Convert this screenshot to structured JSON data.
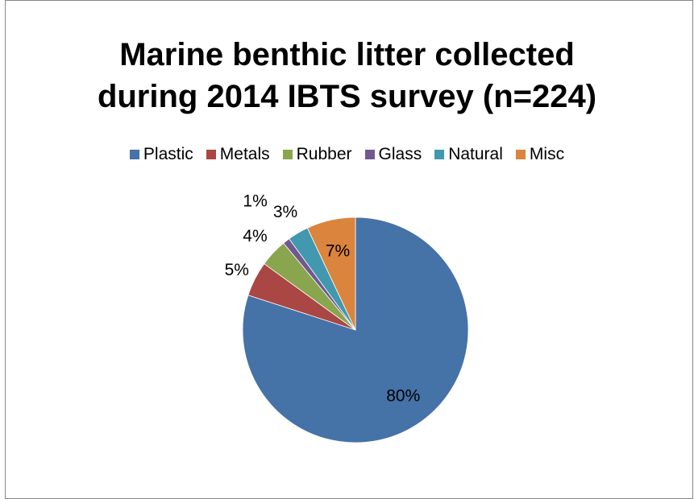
{
  "chart_data": {
    "type": "pie",
    "title_lines": [
      "Marine benthic litter collected",
      "during 2014 IBTS survey (n=224)"
    ],
    "categories": [
      "Plastic",
      "Metals",
      "Rubber",
      "Glass",
      "Natural",
      "Misc"
    ],
    "values": [
      80,
      5,
      4,
      1,
      3,
      7
    ],
    "data_labels": [
      "80%",
      "5%",
      "4%",
      "1%",
      "3%",
      "7%"
    ],
    "colors": [
      "#4572A7",
      "#AA4643",
      "#89A54E",
      "#71588F",
      "#4198AF",
      "#DB843D"
    ],
    "legend_position": "top"
  }
}
